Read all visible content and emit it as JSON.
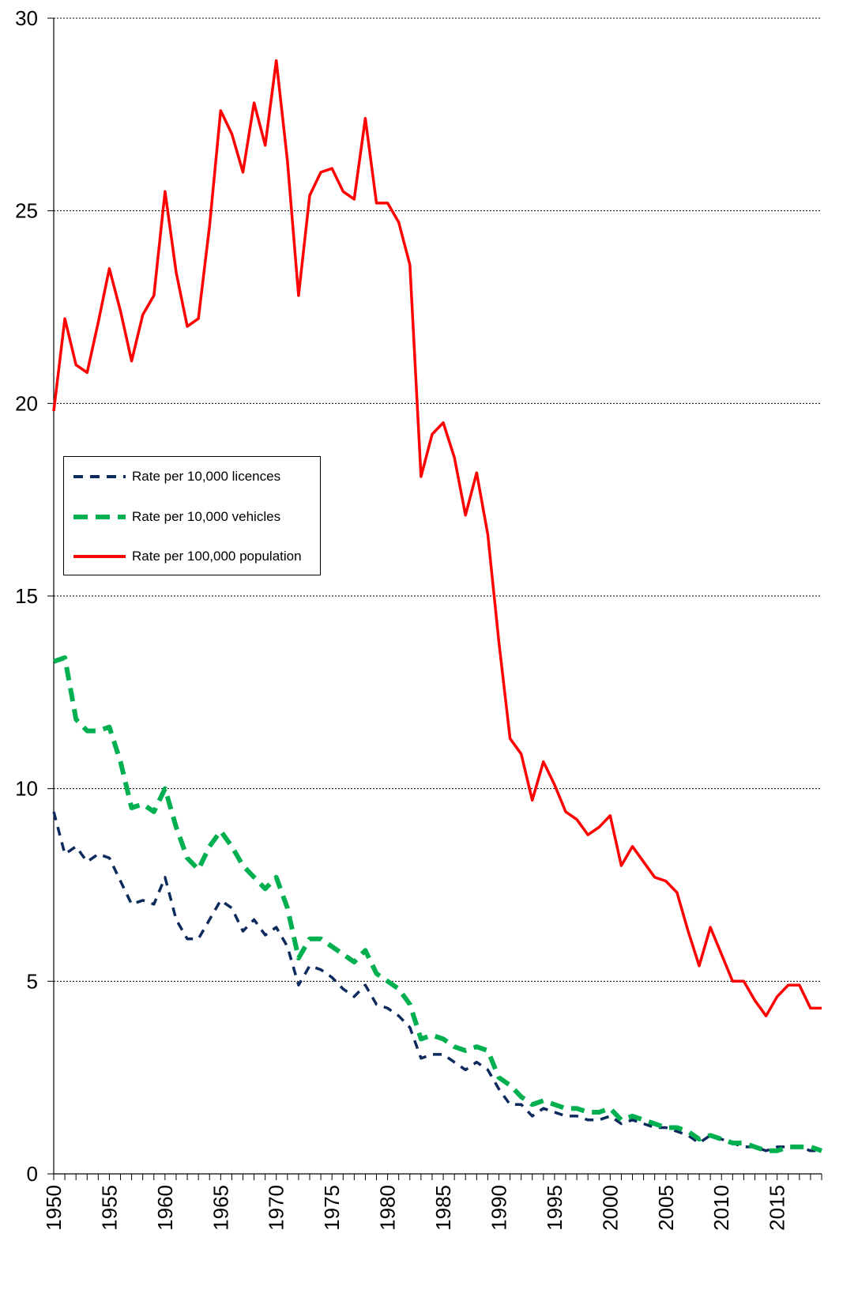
{
  "chart_data": {
    "type": "line",
    "title": "",
    "xlabel": "",
    "ylabel": "",
    "ylim": [
      0,
      30
    ],
    "xlim": [
      1950,
      2019
    ],
    "yticks": [
      0,
      5,
      10,
      15,
      20,
      25,
      30
    ],
    "xticks": [
      1950,
      1955,
      1960,
      1965,
      1970,
      1975,
      1980,
      1985,
      1990,
      1995,
      2000,
      2005,
      2010,
      2015
    ],
    "grid": "horizontal",
    "legend_position": "left",
    "x": [
      1950,
      1951,
      1952,
      1953,
      1954,
      1955,
      1956,
      1957,
      1958,
      1959,
      1960,
      1961,
      1962,
      1963,
      1964,
      1965,
      1966,
      1967,
      1968,
      1969,
      1970,
      1971,
      1972,
      1973,
      1974,
      1975,
      1976,
      1977,
      1978,
      1979,
      1980,
      1981,
      1982,
      1983,
      1984,
      1985,
      1986,
      1987,
      1988,
      1989,
      1990,
      1991,
      1992,
      1993,
      1994,
      1995,
      1996,
      1997,
      1998,
      1999,
      2000,
      2001,
      2002,
      2003,
      2004,
      2005,
      2006,
      2007,
      2008,
      2009,
      2010,
      2011,
      2012,
      2013,
      2014,
      2015,
      2016,
      2017,
      2018,
      2019
    ],
    "series": [
      {
        "name": "Rate per 10,000 licences",
        "color": "#0d2a5c",
        "style": "dashed",
        "values": [
          9.4,
          8.3,
          8.5,
          8.1,
          8.3,
          8.2,
          7.6,
          7.0,
          7.1,
          7.0,
          7.7,
          6.6,
          6.1,
          6.1,
          6.6,
          7.1,
          6.9,
          6.3,
          6.6,
          6.2,
          6.4,
          5.9,
          4.9,
          5.4,
          5.3,
          5.1,
          4.8,
          4.6,
          4.9,
          4.4,
          4.3,
          4.1,
          3.8,
          3.0,
          3.1,
          3.1,
          2.9,
          2.7,
          2.9,
          2.7,
          2.2,
          1.8,
          1.8,
          1.5,
          1.7,
          1.6,
          1.5,
          1.5,
          1.4,
          1.4,
          1.5,
          1.3,
          1.4,
          1.3,
          1.2,
          1.2,
          1.1,
          1.0,
          0.8,
          1.0,
          0.9,
          0.8,
          0.7,
          0.7,
          0.6,
          0.7,
          0.7,
          0.7,
          0.6,
          0.6
        ]
      },
      {
        "name": "Rate per 10,000 vehicles",
        "color": "#00b050",
        "style": "dashed",
        "values": [
          13.3,
          13.4,
          11.8,
          11.5,
          11.5,
          11.6,
          10.7,
          9.5,
          9.6,
          9.4,
          10.0,
          9.0,
          8.2,
          7.9,
          8.5,
          8.9,
          8.5,
          8.0,
          7.7,
          7.4,
          7.7,
          6.9,
          5.6,
          6.1,
          6.1,
          5.9,
          5.7,
          5.5,
          5.8,
          5.2,
          5.0,
          4.8,
          4.4,
          3.5,
          3.6,
          3.5,
          3.3,
          3.2,
          3.3,
          3.2,
          2.5,
          2.3,
          2.0,
          1.8,
          1.9,
          1.8,
          1.7,
          1.7,
          1.6,
          1.6,
          1.7,
          1.4,
          1.5,
          1.4,
          1.3,
          1.2,
          1.2,
          1.1,
          0.9,
          1.0,
          0.9,
          0.8,
          0.8,
          0.7,
          0.6,
          0.6,
          0.7,
          0.7,
          0.7,
          0.6
        ]
      },
      {
        "name": "Rate per 100,000 population",
        "color": "#ff0000",
        "style": "solid",
        "values": [
          19.8,
          22.2,
          21.0,
          20.8,
          22.1,
          23.5,
          22.4,
          21.1,
          22.3,
          22.8,
          25.5,
          23.4,
          22.0,
          22.2,
          24.6,
          27.6,
          27.0,
          26.0,
          27.8,
          26.7,
          28.9,
          26.3,
          22.8,
          25.4,
          26.0,
          26.1,
          25.5,
          25.3,
          27.4,
          25.2,
          25.2,
          24.7,
          23.6,
          18.1,
          19.2,
          19.5,
          18.6,
          17.1,
          18.2,
          16.6,
          13.8,
          11.3,
          10.9,
          9.7,
          10.7,
          10.1,
          9.4,
          9.2,
          8.8,
          9.0,
          9.3,
          8.0,
          8.5,
          8.1,
          7.7,
          7.6,
          7.3,
          6.3,
          5.4,
          6.4,
          5.7,
          5.0,
          5.0,
          4.5,
          4.1,
          4.6,
          4.9,
          4.9,
          4.3,
          4.3
        ]
      }
    ]
  }
}
